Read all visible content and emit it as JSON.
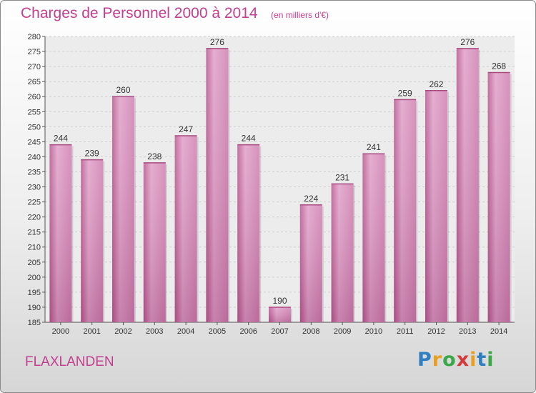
{
  "header": {
    "title": "Charges de Personnel 2000 à 2014",
    "subtitle": "(en milliers d'€)"
  },
  "footer": {
    "place": "FLAXLANDEN",
    "logo_letters": [
      "P",
      "r",
      "o",
      "x",
      "i",
      "t",
      "i"
    ],
    "logo_colors": [
      "#2f7fc1",
      "#e8a020",
      "#3aa84a",
      "#d23c3c",
      "#e8a020",
      "#2f7fc1",
      "#3aa84a"
    ]
  },
  "chart_data": {
    "type": "bar",
    "categories": [
      "2000",
      "2001",
      "2002",
      "2003",
      "2004",
      "2005",
      "2006",
      "2007",
      "2008",
      "2009",
      "2010",
      "2011",
      "2012",
      "2013",
      "2014"
    ],
    "values": [
      244,
      239,
      260,
      238,
      247,
      276,
      244,
      190,
      224,
      231,
      241,
      259,
      262,
      276,
      268
    ],
    "title": "Charges de Personnel 2000 à 2014",
    "subtitle": "(en milliers d'€)",
    "ylim": [
      185,
      280
    ],
    "yticks": [
      185,
      190,
      195,
      200,
      205,
      210,
      215,
      220,
      225,
      230,
      235,
      240,
      245,
      250,
      255,
      260,
      265,
      270,
      275,
      280
    ],
    "grid": true,
    "bar_color": "#d98bbb"
  }
}
